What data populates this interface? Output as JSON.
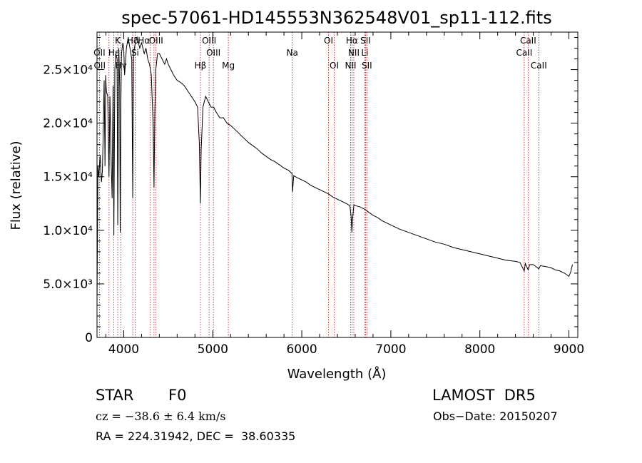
{
  "chart_data": {
    "type": "line",
    "title": "spec-57061-HD145553N362548V01_sp11-112.fits",
    "xlabel": "Wavelength (Å)",
    "ylabel": "Flux (relative)",
    "xlim": [
      3700,
      9100
    ],
    "ylim": [
      0,
      28500
    ],
    "grid": false,
    "x_ticks": [
      4000,
      5000,
      6000,
      7000,
      8000,
      9000
    ],
    "x_tick_labels": [
      "4000",
      "5000",
      "6000",
      "7000",
      "8000",
      "9000"
    ],
    "y_ticks": [
      0,
      5000,
      10000,
      15000,
      20000,
      25000
    ],
    "y_tick_labels": [
      "0",
      "5.0×10³",
      "1.0×10⁴",
      "1.5×10⁴",
      "2.0×10⁴",
      "2.5×10⁴"
    ],
    "series": [
      {
        "x": [
          3700,
          3710,
          3720,
          3735,
          3750,
          3760,
          3770,
          3780,
          3790,
          3797,
          3805,
          3820,
          3835,
          3845,
          3860,
          3870,
          3880,
          3889,
          3900,
          3910,
          3925,
          3933,
          3945,
          3955,
          3960,
          3968,
          3975,
          3990,
          4000,
          4010,
          4030,
          4050,
          4070,
          4090,
          4101,
          4110,
          4130,
          4150,
          4180,
          4200,
          4230,
          4250,
          4270,
          4290,
          4310,
          4330,
          4340,
          4350,
          4360,
          4380,
          4400,
          4430,
          4460,
          4480,
          4500,
          4530,
          4560,
          4600,
          4640,
          4680,
          4720,
          4760,
          4800,
          4830,
          4850,
          4861,
          4870,
          4890,
          4920,
          4950,
          4980,
          5010,
          5040,
          5080,
          5120,
          5160,
          5200,
          5250,
          5300,
          5350,
          5400,
          5450,
          5500,
          5550,
          5600,
          5650,
          5700,
          5750,
          5800,
          5850,
          5890,
          5896,
          5910,
          5950,
          6000,
          6050,
          6100,
          6150,
          6200,
          6250,
          6300,
          6350,
          6400,
          6450,
          6500,
          6540,
          6555,
          6563,
          6570,
          6585,
          6600,
          6650,
          6700,
          6750,
          6800,
          6850,
          6900,
          6950,
          7000,
          7100,
          7200,
          7300,
          7400,
          7500,
          7600,
          7700,
          7800,
          7900,
          8000,
          8100,
          8200,
          8300,
          8400,
          8450,
          8498,
          8510,
          8542,
          8560,
          8600,
          8662,
          8680,
          8750,
          8800,
          8850,
          8900,
          8950,
          9000,
          9020,
          9040
        ],
        "y": [
          3000,
          16000,
          15000,
          17000,
          14500,
          15500,
          19000,
          24000,
          16000,
          24500,
          23000,
          22500,
          15000,
          22500,
          16000,
          13000,
          23500,
          9500,
          25000,
          26500,
          26000,
          10500,
          27000,
          23500,
          9800,
          22000,
          26500,
          27500,
          27000,
          24500,
          27000,
          28000,
          27000,
          26000,
          13000,
          26500,
          27500,
          28000,
          27000,
          27500,
          26500,
          27000,
          26000,
          25500,
          24500,
          20000,
          14000,
          21000,
          25000,
          26500,
          26500,
          26000,
          25500,
          26000,
          25500,
          25000,
          24500,
          24000,
          23800,
          23500,
          23000,
          22500,
          22000,
          21500,
          18000,
          12500,
          17500,
          21500,
          22500,
          22000,
          21500,
          21500,
          21000,
          20500,
          20500,
          20000,
          19800,
          19400,
          19000,
          18600,
          18200,
          17900,
          17600,
          17200,
          16900,
          16600,
          16400,
          16100,
          15800,
          15600,
          15300,
          13600,
          15100,
          14900,
          14700,
          14500,
          14200,
          14000,
          13800,
          13600,
          13400,
          13100,
          12900,
          12700,
          12500,
          12300,
          11200,
          9800,
          11000,
          12400,
          12300,
          12200,
          12000,
          11700,
          11400,
          11200,
          10900,
          10700,
          10500,
          10100,
          9800,
          9500,
          9200,
          8900,
          8700,
          8400,
          8200,
          8000,
          7800,
          7600,
          7400,
          7200,
          7100,
          7000,
          6200,
          6900,
          6300,
          6800,
          6800,
          6400,
          6700,
          6600,
          6500,
          6300,
          6200,
          6000,
          5700,
          6100,
          6800
        ]
      }
    ],
    "annotations": [
      {
        "label": "Hδ",
        "x": 4101,
        "tier": 0
      },
      {
        "label": "K",
        "x": 3933,
        "tier": 0
      },
      {
        "label": "Hα",
        "x": 4227,
        "tier": 0
      },
      {
        "label": "OIII",
        "x": 4363,
        "tier": 0
      },
      {
        "label": "OIII",
        "x": 4959,
        "tier": 0
      },
      {
        "label": "OI",
        "x": 6300,
        "tier": 0
      },
      {
        "label": "Hα",
        "x": 6563,
        "tier": 0
      },
      {
        "label": "SII",
        "x": 6716,
        "tier": 0
      },
      {
        "label": "CaII",
        "x": 8542,
        "tier": 0
      },
      {
        "label": "OII",
        "x": 3727,
        "tier": 1
      },
      {
        "label": "Hε",
        "x": 3889,
        "tier": 1
      },
      {
        "label": "Si",
        "x": 4128,
        "tier": 1
      },
      {
        "label": "OIII",
        "x": 5007,
        "tier": 1
      },
      {
        "label": "Na",
        "x": 5893,
        "tier": 1
      },
      {
        "label": "NII",
        "x": 6584,
        "tier": 1
      },
      {
        "label": "Li",
        "x": 6708,
        "tier": 1
      },
      {
        "label": "CaII",
        "x": 8498,
        "tier": 1
      },
      {
        "label": "OII",
        "x": 3730,
        "tier": 2
      },
      {
        "label": "Hγ",
        "x": 3970,
        "tier": 2
      },
      {
        "label": "Hβ",
        "x": 4861,
        "tier": 2
      },
      {
        "label": "Mg",
        "x": 5175,
        "tier": 2
      },
      {
        "label": "OI",
        "x": 6364,
        "tier": 2
      },
      {
        "label": "NII",
        "x": 6548,
        "tier": 2
      },
      {
        "label": "SII",
        "x": 6731,
        "tier": 2
      },
      {
        "label": "CaII",
        "x": 8662,
        "tier": 2
      }
    ],
    "line_markers": [
      3727,
      3835,
      3889,
      3933,
      3968,
      4101,
      4128,
      4300,
      4340,
      4363,
      4861,
      4959,
      5007,
      5175,
      5893,
      6300,
      6364,
      6548,
      6563,
      6584,
      6708,
      6716,
      6731,
      8498,
      8542,
      8662
    ]
  },
  "footer": {
    "object_class": "STAR",
    "subclass": "F0",
    "survey": "LAMOST  DR5",
    "redshift": "cz = −38.6 ± 6.4 km/s",
    "obs_date": "Obs−Date: 20150207",
    "coords": "RA = 224.31942, DEC =  38.60335"
  }
}
